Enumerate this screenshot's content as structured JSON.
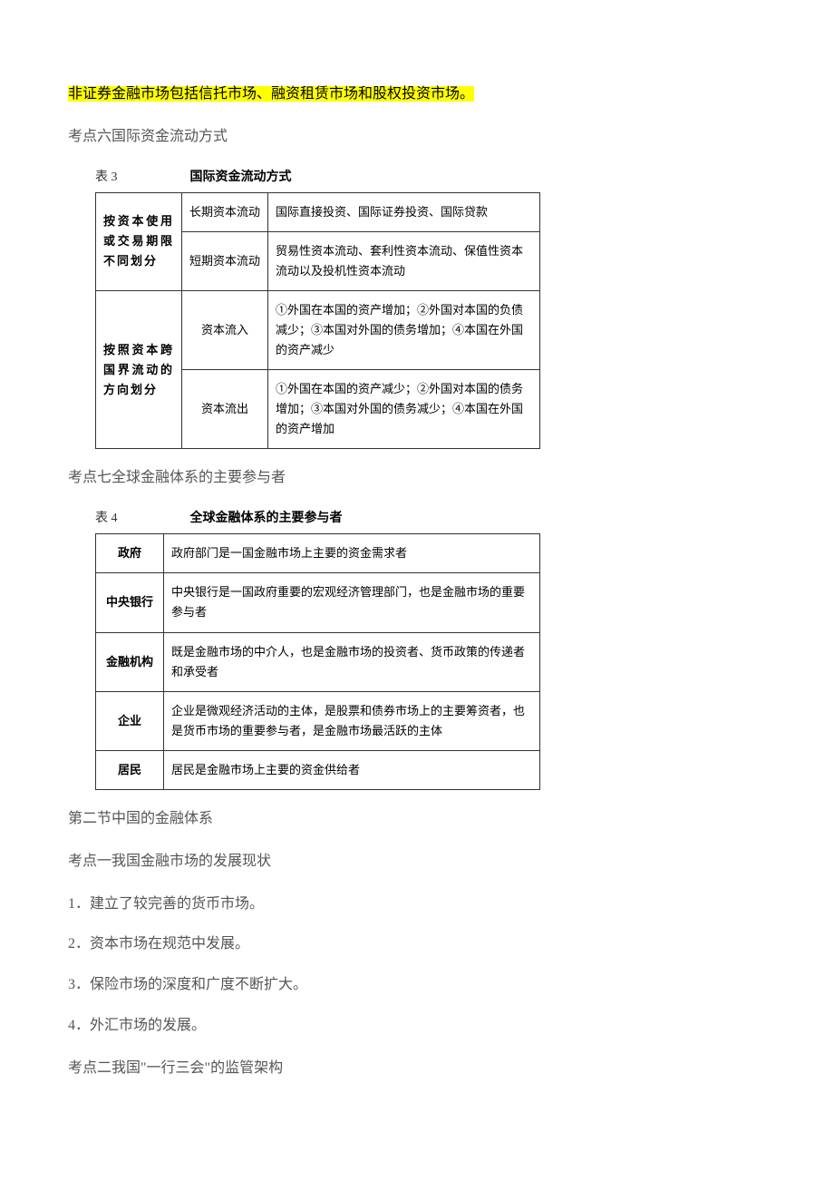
{
  "highlight_text": "非证券金融市场包括信托市场、融资租赁市场和股权投资市场。",
  "kaodian6_title": "考点六国际资金流动方式",
  "table3": {
    "label": "表 3",
    "title": "国际资金流动方式",
    "rows": [
      {
        "cat": "按资本使用或交易期限不同划分",
        "sub": "长期资本流动",
        "desc": "国际直接投资、国际证券投资、国际贷款"
      },
      {
        "sub": "短期资本流动",
        "desc": "贸易性资本流动、套利性资本流动、保值性资本流动以及投机性资本流动"
      },
      {
        "cat": "按照资本跨国界流动的方向划分",
        "sub": "资本流入",
        "desc": "①外国在本国的资产增加；②外国对本国的负债减少；③本国对外国的债务增加；④本国在外国的资产减少"
      },
      {
        "sub": "资本流出",
        "desc": "①外国在本国的资产减少；②外国对本国的债务增加；③本国对外国的债务减少；④本国在外国的资产增加"
      }
    ]
  },
  "kaodian7_title": "考点七全球金融体系的主要参与者",
  "table4": {
    "label": "表 4",
    "title": "全球金融体系的主要参与者",
    "rows": [
      {
        "cat": "政府",
        "desc": "政府部门是一国金融市场上主要的资金需求者"
      },
      {
        "cat": "中央银行",
        "desc": "中央银行是一国政府重要的宏观经济管理部门，也是金融市场的重要参与者"
      },
      {
        "cat": "金融机构",
        "desc": "既是金融市场的中介人，也是金融市场的投资者、货币政策的传递者和承受者"
      },
      {
        "cat": "企业",
        "desc": "企业是微观经济活动的主体，是股票和债券市场上的主要筹资者，也是货币市场的重要参与者，是金融市场最活跃的主体"
      },
      {
        "cat": "居民",
        "desc": "居民是金融市场上主要的资金供给者"
      }
    ]
  },
  "section2_title": "第二节中国的金融体系",
  "kaodian2_1_title": "考点一我国金融市场的发展现状",
  "items": [
    "1．建立了较完善的货币市场。",
    "2．资本市场在规范中发展。",
    "3．保险市场的深度和广度不断扩大。",
    "4．外汇市场的发展。"
  ],
  "kaodian2_2_title": "考点二我国\"一行三会\"的监管架构"
}
